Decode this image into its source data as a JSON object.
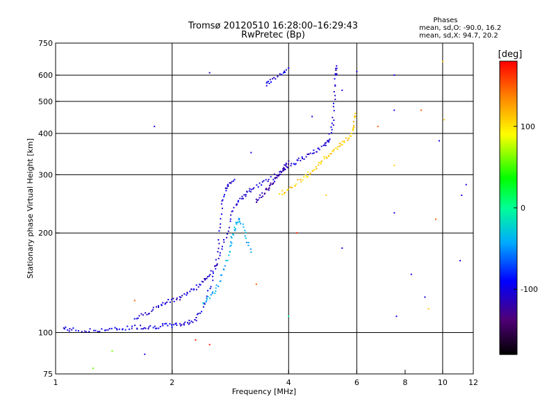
{
  "chart_data": {
    "type": "scatter",
    "title": "Tromsø 20120510 16:28:00–16:29:43",
    "subtitle": "RwPretec (Bp)",
    "phases_block": {
      "heading": "Phases",
      "line_o": "mean, sd,O: -90.0, 16.2",
      "line_x": "mean, sd,X:  94.7, 20.2"
    },
    "xlabel": "Frequency [MHz]",
    "ylabel": "Stationary phase Virtual Height [km]",
    "x_scale": "log",
    "y_scale": "log",
    "xlim": [
      1,
      12
    ],
    "ylim": [
      75,
      750
    ],
    "x_ticks": [
      {
        "value": 1,
        "label": "1"
      },
      {
        "value": 2,
        "label": "2"
      },
      {
        "value": 4,
        "label": "4"
      },
      {
        "value": 6,
        "label": "6"
      },
      {
        "value": 8,
        "label": "8"
      },
      {
        "value": 10,
        "label": "10"
      },
      {
        "value": 12,
        "label": "12"
      }
    ],
    "y_ticks": [
      {
        "value": 75,
        "label": "75"
      },
      {
        "value": 100,
        "label": "100"
      },
      {
        "value": 200,
        "label": "200"
      },
      {
        "value": 300,
        "label": "300"
      },
      {
        "value": 400,
        "label": "400"
      },
      {
        "value": 500,
        "label": "500"
      },
      {
        "value": 600,
        "label": "600"
      },
      {
        "value": 750,
        "label": "750"
      }
    ],
    "grid_x": [
      2,
      4,
      6,
      10
    ],
    "grid_y": [
      100,
      200,
      300,
      400,
      500,
      600
    ],
    "grid": true,
    "colorbar": {
      "label": "[deg]",
      "range": [
        -180,
        180
      ],
      "ticks": [
        {
          "value": 100,
          "label": "100"
        },
        {
          "value": 0,
          "label": "0"
        },
        {
          "value": -100,
          "label": "-100"
        }
      ]
    },
    "traces": [
      {
        "phase": -100,
        "points": [
          [
            1.05,
            103
          ],
          [
            1.1,
            102
          ],
          [
            1.2,
            101
          ],
          [
            1.3,
            102
          ],
          [
            1.4,
            102
          ],
          [
            1.5,
            103
          ],
          [
            1.6,
            104
          ],
          [
            1.7,
            104
          ],
          [
            1.8,
            104
          ],
          [
            1.9,
            105
          ],
          [
            2.0,
            105
          ],
          [
            2.1,
            106
          ],
          [
            2.2,
            107
          ],
          [
            2.3,
            110
          ],
          [
            2.4,
            118
          ],
          [
            2.5,
            135
          ],
          [
            2.6,
            160
          ],
          [
            2.65,
            200
          ],
          [
            2.7,
            245
          ],
          [
            2.75,
            270
          ],
          [
            2.8,
            282
          ],
          [
            2.9,
            290
          ]
        ]
      },
      {
        "phase": -105,
        "points": [
          [
            1.6,
            110
          ],
          [
            1.7,
            114
          ],
          [
            1.8,
            118
          ],
          [
            1.9,
            122
          ],
          [
            2.0,
            125
          ],
          [
            2.1,
            128
          ],
          [
            2.2,
            132
          ],
          [
            2.3,
            137
          ],
          [
            2.4,
            142
          ],
          [
            2.5,
            150
          ],
          [
            2.6,
            160
          ],
          [
            2.7,
            180
          ],
          [
            2.8,
            210
          ],
          [
            2.9,
            240
          ],
          [
            3.0,
            255
          ],
          [
            3.1,
            262
          ],
          [
            3.2,
            272
          ],
          [
            3.4,
            282
          ],
          [
            3.6,
            292
          ],
          [
            3.8,
            305
          ],
          [
            4.0,
            318
          ],
          [
            4.2,
            330
          ],
          [
            4.4,
            338
          ],
          [
            4.6,
            348
          ],
          [
            4.8,
            358
          ],
          [
            5.0,
            370
          ],
          [
            5.1,
            390
          ],
          [
            5.2,
            430
          ],
          [
            5.25,
            500
          ],
          [
            5.3,
            600
          ],
          [
            5.32,
            640
          ]
        ]
      },
      {
        "phase": -40,
        "points": [
          [
            2.4,
            122
          ],
          [
            2.5,
            128
          ],
          [
            2.6,
            135
          ],
          [
            2.7,
            150
          ],
          [
            2.8,
            170
          ],
          [
            2.85,
            190
          ],
          [
            2.9,
            205
          ],
          [
            2.95,
            215
          ],
          [
            3.0,
            220
          ],
          [
            3.1,
            195
          ],
          [
            3.2,
            175
          ]
        ]
      },
      {
        "phase": 110,
        "points": [
          [
            3.8,
            262
          ],
          [
            4.0,
            272
          ],
          [
            4.2,
            284
          ],
          [
            4.4,
            296
          ],
          [
            4.6,
            308
          ],
          [
            4.8,
            322
          ],
          [
            5.0,
            338
          ],
          [
            5.2,
            352
          ],
          [
            5.4,
            368
          ],
          [
            5.6,
            380
          ],
          [
            5.8,
            395
          ],
          [
            5.9,
            420
          ],
          [
            5.95,
            460
          ]
        ]
      },
      {
        "phase": -120,
        "points": [
          [
            3.3,
            250
          ],
          [
            3.4,
            260
          ],
          [
            3.5,
            270
          ],
          [
            3.6,
            280
          ],
          [
            3.7,
            290
          ],
          [
            3.8,
            300
          ],
          [
            3.9,
            315
          ],
          [
            4.0,
            330
          ]
        ]
      },
      {
        "phase": -100,
        "points": [
          [
            3.5,
            560
          ],
          [
            3.6,
            580
          ],
          [
            3.8,
            600
          ],
          [
            4.0,
            630
          ]
        ]
      }
    ],
    "scatter_points": [
      {
        "x": 1.8,
        "y": 420,
        "phase": -100
      },
      {
        "x": 2.5,
        "y": 610,
        "phase": -110
      },
      {
        "x": 3.2,
        "y": 350,
        "phase": -100
      },
      {
        "x": 4.2,
        "y": 200,
        "phase": 170
      },
      {
        "x": 4.6,
        "y": 450,
        "phase": -100
      },
      {
        "x": 5.0,
        "y": 260,
        "phase": 110
      },
      {
        "x": 5.5,
        "y": 540,
        "phase": -100
      },
      {
        "x": 6.0,
        "y": 615,
        "phase": -100
      },
      {
        "x": 6.8,
        "y": 420,
        "phase": 150
      },
      {
        "x": 7.5,
        "y": 600,
        "phase": -100
      },
      {
        "x": 7.5,
        "y": 470,
        "phase": -100
      },
      {
        "x": 7.5,
        "y": 320,
        "phase": 110
      },
      {
        "x": 7.5,
        "y": 230,
        "phase": -100
      },
      {
        "x": 7.6,
        "y": 112,
        "phase": -100
      },
      {
        "x": 8.8,
        "y": 470,
        "phase": 150
      },
      {
        "x": 9.8,
        "y": 380,
        "phase": -100
      },
      {
        "x": 10.0,
        "y": 660,
        "phase": 110
      },
      {
        "x": 10.1,
        "y": 440,
        "phase": 110
      },
      {
        "x": 11.2,
        "y": 260,
        "phase": -100
      },
      {
        "x": 11.5,
        "y": 280,
        "phase": -100
      },
      {
        "x": 11.1,
        "y": 165,
        "phase": -100
      },
      {
        "x": 9.6,
        "y": 220,
        "phase": 150
      },
      {
        "x": 9.0,
        "y": 128,
        "phase": -100
      },
      {
        "x": 9.2,
        "y": 118,
        "phase": 110
      },
      {
        "x": 8.3,
        "y": 150,
        "phase": -100
      },
      {
        "x": 4.0,
        "y": 112,
        "phase": 0
      },
      {
        "x": 2.3,
        "y": 95,
        "phase": 170
      },
      {
        "x": 2.5,
        "y": 92,
        "phase": 170
      },
      {
        "x": 1.4,
        "y": 88,
        "phase": 60
      },
      {
        "x": 1.7,
        "y": 86,
        "phase": -100
      },
      {
        "x": 1.25,
        "y": 78,
        "phase": 60
      },
      {
        "x": 5.5,
        "y": 180,
        "phase": -100
      },
      {
        "x": 1.6,
        "y": 125,
        "phase": 150
      },
      {
        "x": 3.3,
        "y": 140,
        "phase": 150
      }
    ]
  }
}
